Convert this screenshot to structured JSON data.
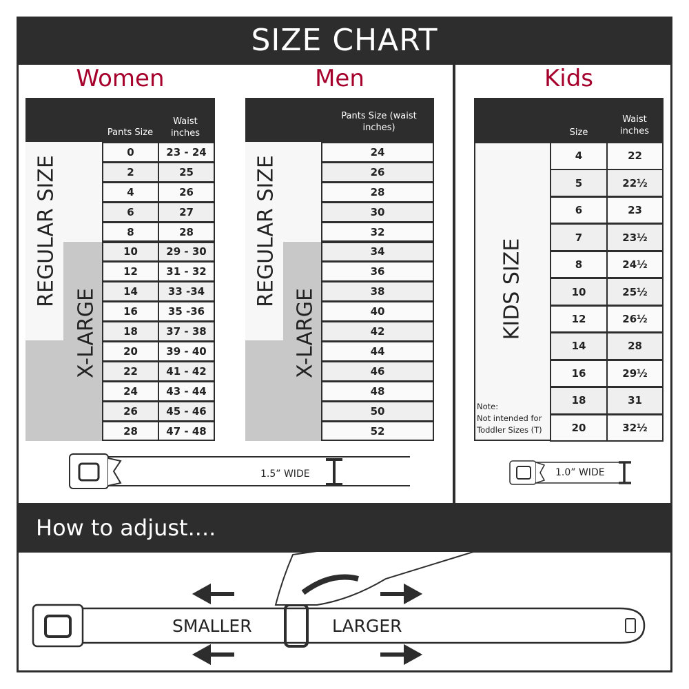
{
  "title": "SIZE CHART",
  "women": {
    "title": "Women",
    "col1": "Pants Size",
    "col2": "Waist inches",
    "regular_label": "REGULAR SIZE",
    "xlarge_label": "X-LARGE",
    "rows": [
      [
        "0",
        "23 - 24"
      ],
      [
        "2",
        "25"
      ],
      [
        "4",
        "26"
      ],
      [
        "6",
        "27"
      ],
      [
        "8",
        "28"
      ],
      [
        "10",
        "29 - 30"
      ],
      [
        "12",
        "31 - 32"
      ],
      [
        "14",
        "33 -34"
      ],
      [
        "16",
        "35 -36"
      ],
      [
        "18",
        "37 - 38"
      ],
      [
        "20",
        "39 - 40"
      ],
      [
        "22",
        "41 - 42"
      ],
      [
        "24",
        "43 - 44"
      ],
      [
        "26",
        "45 - 46"
      ],
      [
        "28",
        "47 - 48"
      ]
    ],
    "belt_width": "1.5” WIDE"
  },
  "men": {
    "title": "Men",
    "col1": "Pants Size (waist inches)",
    "regular_label": "REGULAR SIZE",
    "xlarge_label": "X-LARGE",
    "rows": [
      "24",
      "26",
      "28",
      "30",
      "32",
      "34",
      "36",
      "38",
      "40",
      "42",
      "44",
      "46",
      "48",
      "50",
      "52"
    ]
  },
  "kids": {
    "title": "Kids",
    "col1": "Size",
    "col2": "Waist inches",
    "label": "KIDS SIZE",
    "note_title": "Note:",
    "note_line1": "Not intended for",
    "note_line2": "Toddler Sizes (T)",
    "rows": [
      [
        "4",
        "22"
      ],
      [
        "5",
        "22½"
      ],
      [
        "6",
        "23"
      ],
      [
        "7",
        "23½"
      ],
      [
        "8",
        "24½"
      ],
      [
        "10",
        "25½"
      ],
      [
        "12",
        "26½"
      ],
      [
        "14",
        "28"
      ],
      [
        "16",
        "29½"
      ],
      [
        "18",
        "31"
      ],
      [
        "20",
        "32½"
      ]
    ],
    "belt_width": "1.0” WIDE"
  },
  "adjust": {
    "title": "How to adjust....",
    "smaller": "SMALLER",
    "larger": "LARGER"
  },
  "colors": {
    "dark": "#2d2d2d",
    "accent": "#a6002c",
    "xlarge_fill": "#c8c8c8",
    "row_alt": "#efefef"
  }
}
